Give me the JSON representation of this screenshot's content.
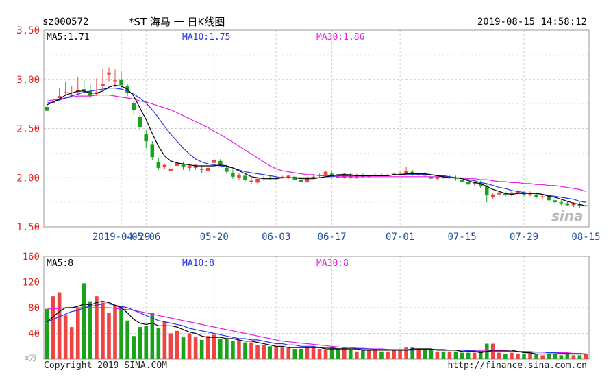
{
  "header": {
    "code": "sz000572",
    "title": "*ST 海马 一 日K线图",
    "datetime": "2019-08-15 14:58:12"
  },
  "price_panel": {
    "ma5_label": "MA5:1.71",
    "ma10_label": "MA10:1.75",
    "ma30_label": "MA30:1.86"
  },
  "volume_panel": {
    "ma5_label": "MA5:8",
    "ma10_label": "MA10:8",
    "ma30_label": "MA30:8",
    "unit_label": "x万"
  },
  "footer": {
    "copyright": "Copyright 2019 SINA.COM",
    "url": "http://finance.sina.com.cn"
  },
  "watermark": "sina",
  "colors": {
    "up": "#ee4444",
    "down": "#1aa31a",
    "ma5": "#000000",
    "ma10": "#2233ee",
    "ma30": "#e61be6",
    "axis_label": "#e2231a",
    "date_label": "#1f4e9c",
    "grid": "#cccccc"
  },
  "chart_data": [
    {
      "type": "candlestick",
      "title": "*ST 海马 一 日K线图",
      "ylim": [
        1.5,
        3.5
      ],
      "y_ticks": [
        "3.50",
        "3.00",
        "2.50",
        "2.00",
        "1.50"
      ],
      "x_tick_labels": [
        "2019-04-29",
        "05-06",
        "05-20",
        "06-03",
        "06-17",
        "07-01",
        "07-15",
        "07-29",
        "08-15"
      ],
      "x_tick_index": [
        12,
        16,
        27,
        37,
        46,
        57,
        67,
        77,
        87
      ],
      "grid": true,
      "legend": "top",
      "candles": [
        [
          2.72,
          2.78,
          2.68,
          2.66
        ],
        [
          2.76,
          2.83,
          2.77,
          2.72
        ],
        [
          2.81,
          2.91,
          2.83,
          2.78
        ],
        [
          2.86,
          2.98,
          2.87,
          2.84
        ],
        [
          2.84,
          2.93,
          2.84,
          2.82
        ],
        [
          2.87,
          3.02,
          2.89,
          2.85
        ],
        [
          2.9,
          2.99,
          2.88,
          2.86
        ],
        [
          2.88,
          2.95,
          2.83,
          2.81
        ],
        [
          2.85,
          3.01,
          2.87,
          2.83
        ],
        [
          2.93,
          3.11,
          2.95,
          2.91
        ],
        [
          3.05,
          3.12,
          3.07,
          2.98
        ],
        [
          2.98,
          3.1,
          2.99,
          2.92
        ],
        [
          3.0,
          3.08,
          2.94,
          2.9
        ],
        [
          2.93,
          2.95,
          2.86,
          2.83
        ],
        [
          2.76,
          2.78,
          2.69,
          2.65
        ],
        [
          2.62,
          2.64,
          2.51,
          2.48
        ],
        [
          2.44,
          2.48,
          2.37,
          2.3
        ],
        [
          2.34,
          2.37,
          2.21,
          2.18
        ],
        [
          2.16,
          2.2,
          2.1,
          2.08
        ],
        [
          2.11,
          2.14,
          2.13,
          2.09
        ],
        [
          2.07,
          2.12,
          2.09,
          2.04
        ],
        [
          2.12,
          2.2,
          2.15,
          2.1
        ],
        [
          2.14,
          2.16,
          2.11,
          2.08
        ],
        [
          2.1,
          2.13,
          2.12,
          2.07
        ],
        [
          2.1,
          2.14,
          2.13,
          2.08
        ],
        [
          2.09,
          2.12,
          2.08,
          2.05
        ],
        [
          2.07,
          2.12,
          2.1,
          2.06
        ],
        [
          2.15,
          2.2,
          2.18,
          2.13
        ],
        [
          2.17,
          2.19,
          2.14,
          2.12
        ],
        [
          2.1,
          2.13,
          2.06,
          2.04
        ],
        [
          2.05,
          2.08,
          2.01,
          1.99
        ],
        [
          2.0,
          2.05,
          2.03,
          1.98
        ],
        [
          2.02,
          2.04,
          1.98,
          1.96
        ],
        [
          1.96,
          2.0,
          1.97,
          1.94
        ],
        [
          1.95,
          2.01,
          1.99,
          1.94
        ],
        [
          1.99,
          2.02,
          2.0,
          1.97
        ],
        [
          2.0,
          2.02,
          1.99,
          1.98
        ],
        [
          1.99,
          2.01,
          2.0,
          1.98
        ],
        [
          2.0,
          2.02,
          2.01,
          1.99
        ],
        [
          2.0,
          2.03,
          2.02,
          1.99
        ],
        [
          2.01,
          2.03,
          1.98,
          1.97
        ],
        [
          1.98,
          2.0,
          1.96,
          1.95
        ],
        [
          1.96,
          2.01,
          2.0,
          1.95
        ],
        [
          2.0,
          2.03,
          2.01,
          1.99
        ],
        [
          2.02,
          2.04,
          2.03,
          2.0
        ],
        [
          2.03,
          2.07,
          2.06,
          2.02
        ],
        [
          2.04,
          2.06,
          2.02,
          2.01
        ],
        [
          2.01,
          2.03,
          2.0,
          1.99
        ],
        [
          2.0,
          2.05,
          2.04,
          1.99
        ],
        [
          2.03,
          2.05,
          2.0,
          1.99
        ],
        [
          2.0,
          2.04,
          2.03,
          1.99
        ],
        [
          2.02,
          2.04,
          2.01,
          2.0
        ],
        [
          2.01,
          2.03,
          2.02,
          2.0
        ],
        [
          2.02,
          2.04,
          2.03,
          2.01
        ],
        [
          2.03,
          2.05,
          2.02,
          2.01
        ],
        [
          2.02,
          2.04,
          2.03,
          2.01
        ],
        [
          2.03,
          2.05,
          2.04,
          2.02
        ],
        [
          2.04,
          2.06,
          2.05,
          2.02
        ],
        [
          2.05,
          2.11,
          2.07,
          2.03
        ],
        [
          2.06,
          2.08,
          2.03,
          2.02
        ],
        [
          2.03,
          2.05,
          2.04,
          2.02
        ],
        [
          2.04,
          2.06,
          2.02,
          2.01
        ],
        [
          2.01,
          2.03,
          1.99,
          1.98
        ],
        [
          1.99,
          2.02,
          2.01,
          1.98
        ],
        [
          2.01,
          2.03,
          2.0,
          1.99
        ],
        [
          2.0,
          2.02,
          2.01,
          1.99
        ],
        [
          2.0,
          2.02,
          1.99,
          1.97
        ],
        [
          1.98,
          2.0,
          1.96,
          1.94
        ],
        [
          1.96,
          1.98,
          1.93,
          1.92
        ],
        [
          1.94,
          1.96,
          1.95,
          1.92
        ],
        [
          1.95,
          1.97,
          1.91,
          1.89
        ],
        [
          1.92,
          1.94,
          1.82,
          1.75
        ],
        [
          1.8,
          1.84,
          1.83,
          1.78
        ],
        [
          1.83,
          1.86,
          1.85,
          1.8
        ],
        [
          1.84,
          1.87,
          1.82,
          1.8
        ],
        [
          1.82,
          1.86,
          1.85,
          1.81
        ],
        [
          1.84,
          1.88,
          1.86,
          1.83
        ],
        [
          1.85,
          1.87,
          1.83,
          1.81
        ],
        [
          1.83,
          1.86,
          1.84,
          1.81
        ],
        [
          1.83,
          1.85,
          1.8,
          1.79
        ],
        [
          1.8,
          1.83,
          1.81,
          1.78
        ],
        [
          1.8,
          1.82,
          1.77,
          1.76
        ],
        [
          1.77,
          1.79,
          1.75,
          1.73
        ],
        [
          1.75,
          1.77,
          1.74,
          1.72
        ],
        [
          1.74,
          1.76,
          1.72,
          1.71
        ],
        [
          1.72,
          1.75,
          1.73,
          1.7
        ],
        [
          1.73,
          1.75,
          1.71,
          1.69
        ],
        [
          1.71,
          1.74,
          1.72,
          1.7
        ]
      ],
      "ma5": [
        2.74,
        2.77,
        2.8,
        2.84,
        2.86,
        2.88,
        2.88,
        2.86,
        2.86,
        2.88,
        2.92,
        2.94,
        2.93,
        2.9,
        2.83,
        2.71,
        2.59,
        2.45,
        2.32,
        2.22,
        2.17,
        2.15,
        2.14,
        2.13,
        2.12,
        2.12,
        2.12,
        2.12,
        2.13,
        2.12,
        2.1,
        2.07,
        2.04,
        2.01,
        2.0,
        1.99,
        1.99,
        1.99,
        2.0,
        2.0,
        2.0,
        1.99,
        1.99,
        1.99,
        2.0,
        2.01,
        2.02,
        2.03,
        2.03,
        2.03,
        2.02,
        2.02,
        2.02,
        2.02,
        2.02,
        2.02,
        2.03,
        2.03,
        2.04,
        2.04,
        2.04,
        2.04,
        2.03,
        2.02,
        2.01,
        2.0,
        2.0,
        1.99,
        1.97,
        1.95,
        1.94,
        1.91,
        1.88,
        1.86,
        1.84,
        1.83,
        1.84,
        1.84,
        1.84,
        1.84,
        1.83,
        1.81,
        1.8,
        1.78,
        1.76,
        1.74,
        1.73,
        1.71
      ],
      "ma10": [
        2.76,
        2.77,
        2.79,
        2.81,
        2.83,
        2.85,
        2.87,
        2.88,
        2.89,
        2.9,
        2.91,
        2.91,
        2.9,
        2.88,
        2.85,
        2.81,
        2.76,
        2.69,
        2.61,
        2.52,
        2.44,
        2.37,
        2.3,
        2.24,
        2.19,
        2.16,
        2.14,
        2.13,
        2.12,
        2.11,
        2.1,
        2.08,
        2.06,
        2.05,
        2.04,
        2.03,
        2.02,
        2.01,
        2.0,
        2.0,
        2.0,
        2.0,
        2.0,
        2.0,
        2.0,
        2.01,
        2.01,
        2.02,
        2.02,
        2.02,
        2.02,
        2.02,
        2.02,
        2.02,
        2.02,
        2.02,
        2.03,
        2.03,
        2.03,
        2.03,
        2.03,
        2.03,
        2.03,
        2.02,
        2.02,
        2.01,
        2.0,
        1.99,
        1.98,
        1.97,
        1.95,
        1.94,
        1.92,
        1.9,
        1.89,
        1.87,
        1.86,
        1.85,
        1.84,
        1.84,
        1.83,
        1.82,
        1.81,
        1.8,
        1.79,
        1.78,
        1.76,
        1.75
      ],
      "ma30": [
        2.78,
        2.79,
        2.8,
        2.81,
        2.82,
        2.83,
        2.83,
        2.83,
        2.84,
        2.84,
        2.84,
        2.83,
        2.82,
        2.81,
        2.8,
        2.78,
        2.77,
        2.75,
        2.73,
        2.71,
        2.69,
        2.66,
        2.63,
        2.6,
        2.57,
        2.54,
        2.51,
        2.47,
        2.44,
        2.4,
        2.36,
        2.32,
        2.28,
        2.24,
        2.2,
        2.16,
        2.12,
        2.09,
        2.07,
        2.06,
        2.05,
        2.04,
        2.03,
        2.03,
        2.02,
        2.02,
        2.02,
        2.01,
        2.01,
        2.01,
        2.01,
        2.01,
        2.01,
        2.01,
        2.01,
        2.01,
        2.01,
        2.01,
        2.01,
        2.01,
        2.01,
        2.01,
        2.01,
        2.01,
        2.01,
        2.01,
        2.0,
        2.0,
        1.99,
        1.99,
        1.98,
        1.98,
        1.97,
        1.96,
        1.96,
        1.95,
        1.95,
        1.94,
        1.94,
        1.93,
        1.93,
        1.92,
        1.92,
        1.91,
        1.9,
        1.89,
        1.88,
        1.86
      ]
    },
    {
      "type": "bar",
      "title": "",
      "ylim": [
        0,
        160
      ],
      "y_ticks": [
        "160",
        "120",
        "80",
        "40"
      ],
      "grid": true,
      "legend": "top",
      "volumes": [
        78,
        98,
        104,
        68,
        50,
        80,
        118,
        90,
        98,
        88,
        72,
        84,
        82,
        60,
        36,
        50,
        52,
        72,
        48,
        58,
        40,
        44,
        34,
        40,
        34,
        30,
        36,
        38,
        32,
        32,
        28,
        30,
        26,
        26,
        22,
        22,
        20,
        20,
        18,
        18,
        16,
        16,
        18,
        18,
        16,
        14,
        18,
        16,
        18,
        14,
        12,
        14,
        14,
        14,
        12,
        12,
        14,
        14,
        18,
        18,
        16,
        16,
        14,
        12,
        12,
        12,
        12,
        10,
        10,
        10,
        10,
        24,
        24,
        10,
        8,
        10,
        8,
        8,
        10,
        8,
        6,
        8,
        8,
        6,
        8,
        6,
        6,
        8
      ],
      "ma5": [
        58,
        66,
        74,
        80,
        80,
        82,
        86,
        84,
        88,
        90,
        88,
        84,
        80,
        72,
        62,
        56,
        54,
        56,
        52,
        52,
        52,
        50,
        46,
        42,
        40,
        36,
        34,
        34,
        34,
        32,
        32,
        30,
        28,
        28,
        26,
        24,
        22,
        20,
        20,
        18,
        18,
        18,
        18,
        18,
        18,
        16,
        16,
        16,
        16,
        16,
        16,
        14,
        14,
        14,
        14,
        14,
        14,
        14,
        14,
        16,
        16,
        16,
        16,
        14,
        14,
        14,
        14,
        12,
        12,
        12,
        10,
        12,
        14,
        14,
        14,
        14,
        12,
        10,
        10,
        8,
        8,
        8,
        8,
        8,
        8,
        8,
        8,
        8
      ],
      "ma10": [
        58,
        62,
        66,
        70,
        74,
        76,
        80,
        82,
        84,
        86,
        86,
        84,
        82,
        80,
        76,
        72,
        68,
        64,
        60,
        58,
        56,
        54,
        52,
        48,
        46,
        44,
        42,
        40,
        38,
        36,
        34,
        32,
        32,
        30,
        30,
        28,
        26,
        24,
        24,
        22,
        22,
        20,
        20,
        20,
        18,
        18,
        18,
        16,
        16,
        16,
        16,
        16,
        16,
        15,
        15,
        15,
        14,
        14,
        14,
        14,
        15,
        15,
        15,
        15,
        15,
        14,
        14,
        14,
        13,
        13,
        12,
        12,
        12,
        12,
        12,
        12,
        12,
        12,
        11,
        11,
        11,
        10,
        10,
        9,
        9,
        8,
        8,
        8
      ],
      "ma30": [
        78,
        78,
        79,
        80,
        80,
        80,
        80,
        80,
        80,
        80,
        80,
        79,
        78,
        77,
        76,
        74,
        72,
        70,
        68,
        66,
        64,
        62,
        60,
        58,
        56,
        54,
        52,
        50,
        48,
        46,
        44,
        42,
        40,
        38,
        36,
        34,
        32,
        30,
        28,
        27,
        26,
        25,
        24,
        23,
        22,
        21,
        20,
        19,
        18,
        18,
        17,
        17,
        16,
        16,
        16,
        15,
        15,
        15,
        15,
        15,
        15,
        15,
        15,
        15,
        14,
        14,
        14,
        14,
        14,
        13,
        13,
        13,
        13,
        13,
        13,
        12,
        12,
        12,
        12,
        11,
        11,
        11,
        10,
        10,
        10,
        9,
        9,
        8
      ]
    }
  ]
}
